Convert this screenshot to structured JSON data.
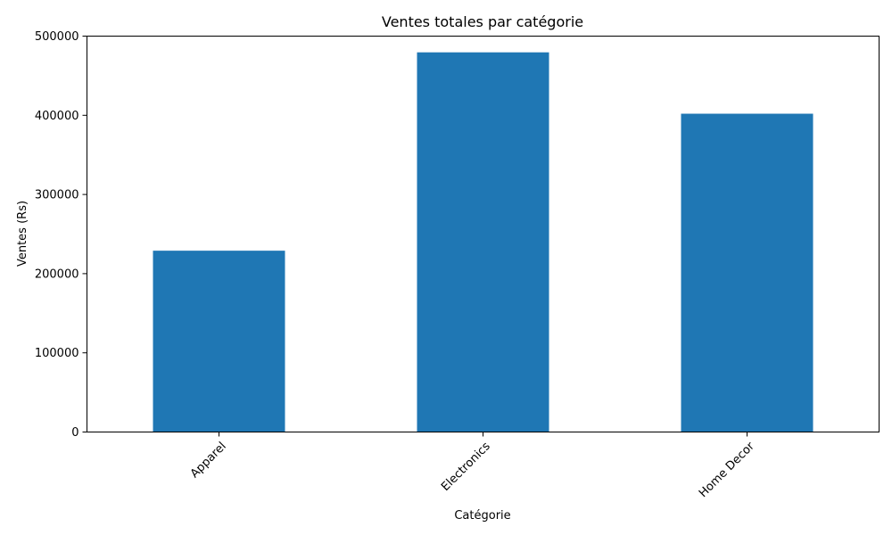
{
  "chart_data": {
    "type": "bar",
    "title": "Ventes totales par catégorie",
    "xlabel": "Catégorie",
    "ylabel": "Ventes (Rs)",
    "categories": [
      "Apparel",
      "Electronics",
      "Home Decor"
    ],
    "series": [
      {
        "values": [
          229000,
          479500,
          402000
        ]
      }
    ],
    "ylim": [
      0,
      500000
    ],
    "yticks": [
      0,
      100000,
      200000,
      300000,
      400000,
      500000
    ],
    "ytick_labels": [
      "0",
      "100000",
      "200000",
      "300000",
      "400000",
      "500000"
    ],
    "xtick_rotation_deg": 45,
    "grid": false,
    "legend": "none",
    "bar_color": "#1f77b4"
  }
}
